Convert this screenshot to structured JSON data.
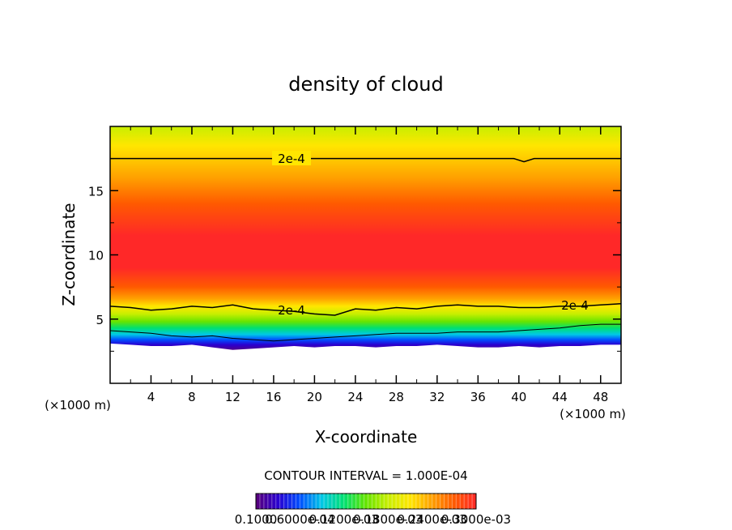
{
  "chart_data": {
    "type": "heatmap",
    "title": "density of cloud",
    "xlabel": "X-coordinate",
    "ylabel": "Z-coordinate",
    "x_unit_label": "(×1000 m)",
    "xlim": [
      0,
      50
    ],
    "ylim": [
      0,
      20
    ],
    "x_ticks": [
      "4",
      "8",
      "12",
      "16",
      "20",
      "24",
      "28",
      "32",
      "36",
      "40",
      "44",
      "48"
    ],
    "y_ticks": [
      "5",
      "10",
      "15"
    ],
    "contour_interval_text": "CONTOUR INTERVAL = 1.000E-04",
    "contour_label": "2e-4",
    "colorbar_labels": [
      "0.1000",
      "0.6000e-04",
      "0.1200e-03",
      "0.1800e-03",
      "0.2400e-03",
      "0.3000e-03"
    ],
    "colorbar_last": "0.3000e-03",
    "colormap": [
      "#5a007a",
      "#2a00d0",
      "#0050ff",
      "#00c8e6",
      "#00e070",
      "#66e400",
      "#c8ef00",
      "#ffe600",
      "#ffa000",
      "#ff5a00",
      "#ff2828"
    ],
    "field": {
      "cloud_base_z": [
        3.1,
        3.0,
        2.9,
        2.9,
        3.0,
        2.8,
        2.6,
        2.7,
        2.8,
        2.9,
        2.8,
        2.9,
        2.9,
        2.8,
        2.9,
        2.9,
        3.0,
        2.9,
        2.8,
        2.8,
        2.9,
        2.8,
        2.9,
        2.9,
        3.0,
        3.0
      ],
      "contour_2e4_lower_z": [
        6.0,
        5.9,
        5.7,
        5.8,
        6.0,
        5.9,
        6.1,
        5.8,
        5.7,
        5.6,
        5.4,
        5.3,
        5.8,
        5.7,
        5.9,
        5.8,
        6.0,
        6.1,
        6.0,
        6.0,
        5.9,
        5.9,
        6.0,
        6.0,
        6.1,
        6.2
      ],
      "contour_1e4_z": [
        4.1,
        4.0,
        3.9,
        3.7,
        3.6,
        3.7,
        3.5,
        3.4,
        3.3,
        3.4,
        3.5,
        3.6,
        3.7,
        3.8,
        3.9,
        3.9,
        3.9,
        4.0,
        4.0,
        4.0,
        4.1,
        4.2,
        4.3,
        4.5,
        4.6,
        4.6
      ],
      "contour_2e4_upper_z": 17.5,
      "peak_z": 11.5
    }
  }
}
